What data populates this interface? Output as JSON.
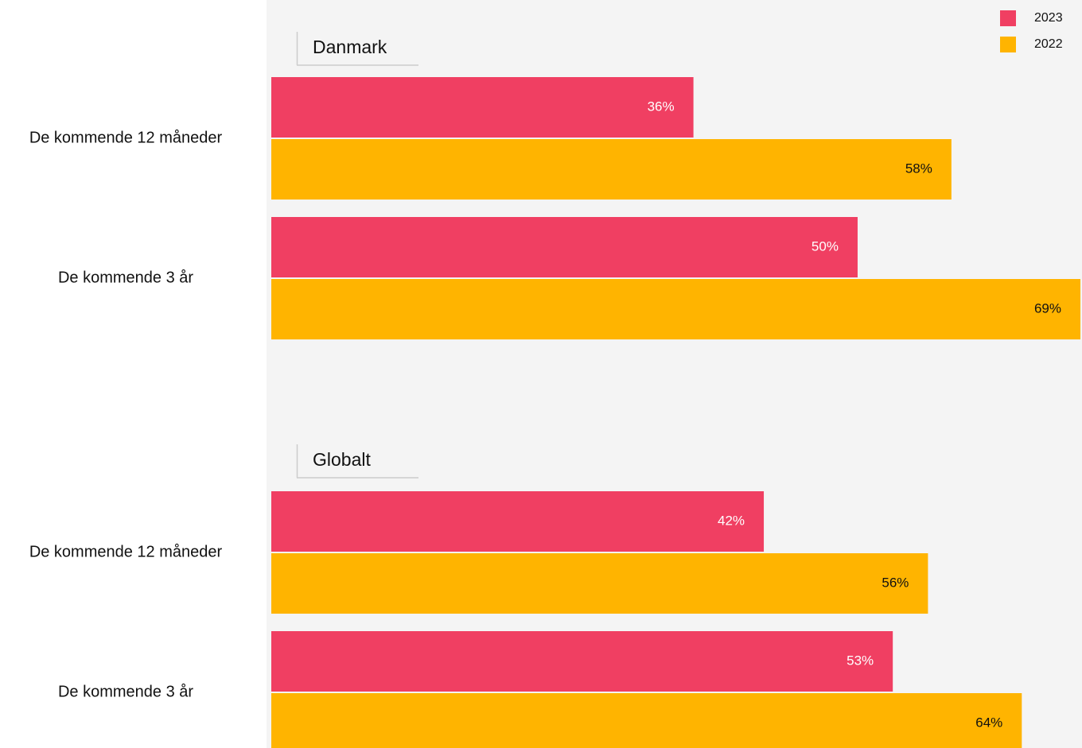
{
  "chart_data": [
    {
      "type": "bar",
      "title": "Danmark",
      "orientation": "horizontal",
      "categories": [
        "De kommende 12 måneder",
        "De kommende 3 år"
      ],
      "series": [
        {
          "name": "2023",
          "color": "#f03f62",
          "values": [
            36,
            50
          ],
          "value_labels": [
            "36%",
            "50%"
          ]
        },
        {
          "name": "2022",
          "color": "#ffb400",
          "values": [
            58,
            69
          ],
          "value_labels": [
            "58%",
            "69%"
          ]
        }
      ],
      "xlim": [
        0,
        69
      ],
      "legend": "top-right"
    },
    {
      "type": "bar",
      "title": "Globalt",
      "orientation": "horizontal",
      "categories": [
        "De kommende 12 måneder",
        "De kommende 3 år"
      ],
      "series": [
        {
          "name": "2023",
          "color": "#f03f62",
          "values": [
            42,
            53
          ],
          "value_labels": [
            "42%",
            "53%"
          ]
        },
        {
          "name": "2022",
          "color": "#ffb400",
          "values": [
            56,
            64
          ],
          "value_labels": [
            "56%",
            "64%"
          ]
        }
      ],
      "xlim": [
        0,
        69
      ]
    }
  ]
}
